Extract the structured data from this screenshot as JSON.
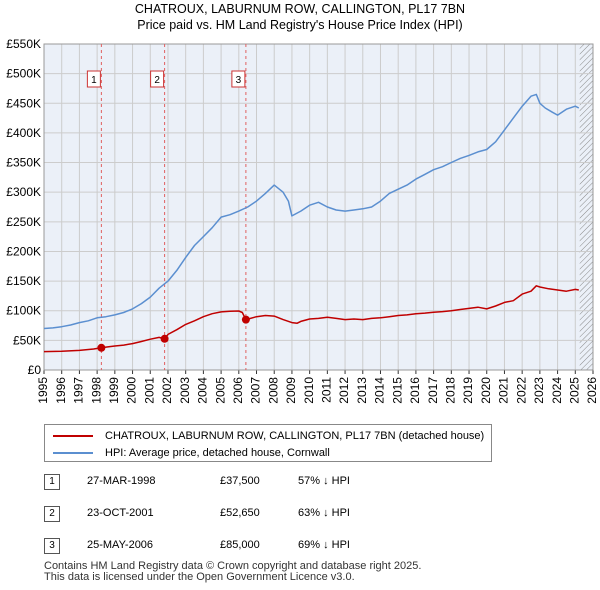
{
  "title_line1": "CHATROUX, LABURNUM ROW, CALLINGTON, PL17 7BN",
  "title_line2": "Price paid vs. HM Land Registry's House Price Index (HPI)",
  "colors": {
    "property": "#c00000",
    "hpi": "#5b8fd0",
    "marker_line": "#e06060",
    "grid": "#cccccc",
    "plot_bg": "#ebf0f8",
    "hatch": "#888888"
  },
  "chart_data": {
    "type": "line",
    "title": "CHATROUX, LABURNUM ROW, CALLINGTON, PL17 7BN",
    "subtitle": "Price paid vs. HM Land Registry's House Price Index (HPI)",
    "xlabel": "",
    "ylabel": "",
    "xlim": [
      1995,
      2026
    ],
    "ylim": [
      0,
      550000
    ],
    "y_ticks": [
      {
        "value": 0,
        "label": "£0"
      },
      {
        "value": 50000,
        "label": "£50K"
      },
      {
        "value": 100000,
        "label": "£100K"
      },
      {
        "value": 150000,
        "label": "£150K"
      },
      {
        "value": 200000,
        "label": "£200K"
      },
      {
        "value": 250000,
        "label": "£250K"
      },
      {
        "value": 300000,
        "label": "£300K"
      },
      {
        "value": 350000,
        "label": "£350K"
      },
      {
        "value": 400000,
        "label": "£400K"
      },
      {
        "value": 450000,
        "label": "£450K"
      },
      {
        "value": 500000,
        "label": "£500K"
      },
      {
        "value": 550000,
        "label": "£550K"
      }
    ],
    "x_ticks": [
      "1995",
      "1996",
      "1997",
      "1998",
      "1999",
      "2000",
      "2001",
      "2002",
      "2003",
      "2004",
      "2005",
      "2006",
      "2007",
      "2008",
      "2009",
      "2010",
      "2011",
      "2012",
      "2013",
      "2014",
      "2015",
      "2016",
      "2017",
      "2018",
      "2019",
      "2020",
      "2021",
      "2022",
      "2023",
      "2024",
      "2025",
      "2026"
    ],
    "grid": true,
    "hatched_from": 2025.25,
    "series": [
      {
        "name": "CHATROUX, LABURNUM ROW, CALLINGTON, PL17 7BN (detached house)",
        "color": "#c00000",
        "x": [
          1995.0,
          1996.0,
          1997.0,
          1997.8,
          1998.24,
          1998.6,
          1999.0,
          1999.5,
          2000.0,
          2000.5,
          2001.0,
          2001.5,
          2001.81,
          2002.0,
          2002.5,
          2003.0,
          2003.5,
          2004.0,
          2004.5,
          2005.0,
          2005.5,
          2006.0,
          2006.2,
          2006.4,
          2007.0,
          2007.5,
          2008.0,
          2008.5,
          2009.0,
          2009.3,
          2009.5,
          2010.0,
          2010.5,
          2011.0,
          2011.5,
          2012.0,
          2012.5,
          2013.0,
          2013.5,
          2014.0,
          2014.5,
          2015.0,
          2015.5,
          2016.0,
          2016.5,
          2017.0,
          2017.5,
          2018.0,
          2018.5,
          2019.0,
          2019.5,
          2020.0,
          2020.5,
          2021.0,
          2021.5,
          2022.0,
          2022.5,
          2022.8,
          2023.0,
          2023.5,
          2024.0,
          2024.5,
          2025.0,
          2025.2
        ],
        "y": [
          31000,
          31500,
          33000,
          35500,
          37500,
          39000,
          40500,
          42000,
          44500,
          48000,
          52000,
          55000,
          52650,
          60000,
          68000,
          77000,
          83000,
          90000,
          95000,
          98000,
          99000,
          99500,
          97000,
          85000,
          90000,
          92000,
          91000,
          85000,
          80000,
          79000,
          82000,
          86000,
          87000,
          89000,
          87000,
          85000,
          86000,
          85000,
          87000,
          88000,
          90000,
          92000,
          93000,
          95000,
          96000,
          97500,
          98500,
          100000,
          102000,
          104000,
          106000,
          103000,
          108000,
          114000,
          117000,
          128000,
          133000,
          142000,
          140000,
          137000,
          135000,
          133000,
          136000,
          135000
        ]
      },
      {
        "name": "HPI: Average price, detached house, Cornwall",
        "color": "#5b8fd0",
        "x": [
          1995.0,
          1995.5,
          1996.0,
          1996.5,
          1997.0,
          1997.5,
          1998.0,
          1998.5,
          1999.0,
          1999.5,
          2000.0,
          2000.5,
          2001.0,
          2001.5,
          2002.0,
          2002.5,
          2003.0,
          2003.5,
          2004.0,
          2004.5,
          2005.0,
          2005.5,
          2006.0,
          2006.5,
          2007.0,
          2007.5,
          2008.0,
          2008.5,
          2008.8,
          2009.0,
          2009.5,
          2010.0,
          2010.5,
          2011.0,
          2011.5,
          2012.0,
          2012.5,
          2013.0,
          2013.5,
          2014.0,
          2014.5,
          2015.0,
          2015.5,
          2016.0,
          2016.5,
          2017.0,
          2017.5,
          2018.0,
          2018.5,
          2019.0,
          2019.5,
          2020.0,
          2020.5,
          2021.0,
          2021.5,
          2022.0,
          2022.5,
          2022.8,
          2023.0,
          2023.3,
          2023.7,
          2024.0,
          2024.5,
          2025.0,
          2025.2
        ],
        "y": [
          70000,
          71000,
          73000,
          76000,
          80000,
          83000,
          88000,
          90000,
          93000,
          97000,
          103000,
          112000,
          123000,
          138000,
          150000,
          168000,
          190000,
          210000,
          225000,
          240000,
          258000,
          262000,
          268000,
          275000,
          285000,
          298000,
          312000,
          300000,
          285000,
          260000,
          268000,
          278000,
          283000,
          275000,
          270000,
          268000,
          270000,
          272000,
          275000,
          285000,
          298000,
          305000,
          312000,
          322000,
          330000,
          338000,
          343000,
          350000,
          357000,
          362000,
          368000,
          372000,
          385000,
          405000,
          425000,
          445000,
          462000,
          465000,
          450000,
          442000,
          435000,
          430000,
          440000,
          445000,
          442000
        ]
      }
    ],
    "sales": [
      {
        "id": "1",
        "x": 1998.24,
        "y": 37500
      },
      {
        "id": "2",
        "x": 2001.81,
        "y": 52650
      },
      {
        "id": "3",
        "x": 2006.4,
        "y": 85000
      }
    ]
  },
  "legend": {
    "property_label": "CHATROUX, LABURNUM ROW, CALLINGTON, PL17 7BN (detached house)",
    "hpi_label": "HPI: Average price, detached house, Cornwall"
  },
  "sales_table": [
    {
      "num": "1",
      "date": "27-MAR-1998",
      "price": "£37,500",
      "hpi": "57% ↓ HPI"
    },
    {
      "num": "2",
      "date": "23-OCT-2001",
      "price": "£52,650",
      "hpi": "63% ↓ HPI"
    },
    {
      "num": "3",
      "date": "25-MAY-2006",
      "price": "£85,000",
      "hpi": "69% ↓ HPI"
    }
  ],
  "footer": {
    "line1": "Contains HM Land Registry data © Crown copyright and database right 2025.",
    "line2": "This data is licensed under the Open Government Licence v3.0."
  }
}
